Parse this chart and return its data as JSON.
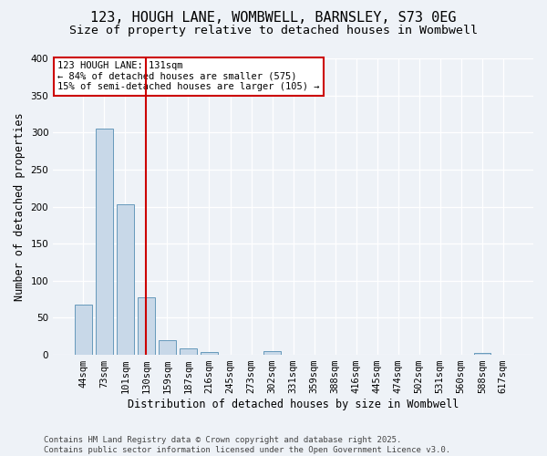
{
  "title_line1": "123, HOUGH LANE, WOMBWELL, BARNSLEY, S73 0EG",
  "title_line2": "Size of property relative to detached houses in Wombwell",
  "xlabel": "Distribution of detached houses by size in Wombwell",
  "ylabel": "Number of detached properties",
  "categories": [
    "44sqm",
    "73sqm",
    "101sqm",
    "130sqm",
    "159sqm",
    "187sqm",
    "216sqm",
    "245sqm",
    "273sqm",
    "302sqm",
    "331sqm",
    "359sqm",
    "388sqm",
    "416sqm",
    "445sqm",
    "474sqm",
    "502sqm",
    "531sqm",
    "560sqm",
    "588sqm",
    "617sqm"
  ],
  "values": [
    68,
    305,
    203,
    78,
    20,
    9,
    4,
    0,
    0,
    5,
    0,
    0,
    0,
    0,
    0,
    0,
    0,
    0,
    0,
    3,
    0
  ],
  "bar_color": "#c8d8e8",
  "bar_edge_color": "#6699bb",
  "vline_x": 3,
  "vline_color": "#cc0000",
  "annotation_text": "123 HOUGH LANE: 131sqm\n← 84% of detached houses are smaller (575)\n15% of semi-detached houses are larger (105) →",
  "annotation_box_facecolor": "#ffffff",
  "annotation_box_edgecolor": "#cc0000",
  "ylim": [
    0,
    400
  ],
  "yticks": [
    0,
    50,
    100,
    150,
    200,
    250,
    300,
    350,
    400
  ],
  "bg_color": "#eef2f7",
  "footer": "Contains HM Land Registry data © Crown copyright and database right 2025.\nContains public sector information licensed under the Open Government Licence v3.0.",
  "title_fontsize": 11,
  "subtitle_fontsize": 9.5,
  "axis_label_fontsize": 8.5,
  "tick_fontsize": 7.5,
  "footer_fontsize": 6.5
}
